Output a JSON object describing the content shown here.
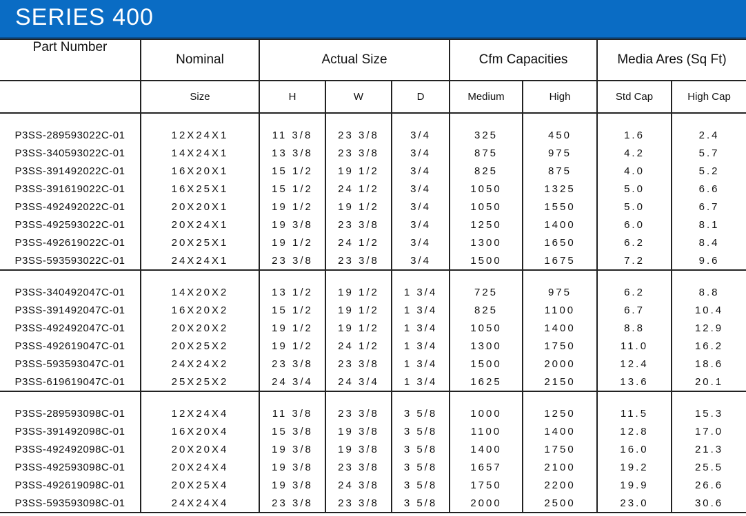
{
  "banner": {
    "title": "SERIES 400"
  },
  "headers": {
    "part_number": "Part Number",
    "nominal": "Nominal",
    "actual_size": "Actual Size",
    "cfm": "Cfm Capacities",
    "media": "Media Ares (Sq Ft)",
    "sub": {
      "size": "Size",
      "h": "H",
      "w": "W",
      "d": "D",
      "medium": "Medium",
      "high": "High",
      "std_cap": "Std Cap",
      "high_cap": "High Cap"
    }
  },
  "groups": [
    {
      "rows": [
        [
          "P3SS-289593022C-01",
          "12X24X1",
          "11 3/8",
          "23 3/8",
          "3/4",
          "325",
          "450",
          "1.6",
          "2.4"
        ],
        [
          "P3SS-340593022C-01",
          "14X24X1",
          "13 3/8",
          "23 3/8",
          "3/4",
          "875",
          "975",
          "4.2",
          "5.7"
        ],
        [
          "P3SS-391492022C-01",
          "16X20X1",
          "15 1/2",
          "19 1/2",
          "3/4",
          "825",
          "875",
          "4.0",
          "5.2"
        ],
        [
          "P3SS-391619022C-01",
          "16X25X1",
          "15 1/2",
          "24 1/2",
          "3/4",
          "1050",
          "1325",
          "5.0",
          "6.6"
        ],
        [
          "P3SS-492492022C-01",
          "20X20X1",
          "19 1/2",
          "19 1/2",
          "3/4",
          "1050",
          "1550",
          "5.0",
          "6.7"
        ],
        [
          "P3SS-492593022C-01",
          "20X24X1",
          "19 3/8",
          "23 3/8",
          "3/4",
          "1250",
          "1400",
          "6.0",
          "8.1"
        ],
        [
          "P3SS-492619022C-01",
          "20X25X1",
          "19 1/2",
          "24 1/2",
          "3/4",
          "1300",
          "1650",
          "6.2",
          "8.4"
        ],
        [
          "P3SS-593593022C-01",
          "24X24X1",
          "23 3/8",
          "23 3/8",
          "3/4",
          "1500",
          "1675",
          "7.2",
          "9.6"
        ]
      ]
    },
    {
      "rows": [
        [
          "P3SS-340492047C-01",
          "14X20X2",
          "13 1/2",
          "19 1/2",
          "1 3/4",
          "725",
          "975",
          "6.2",
          "8.8"
        ],
        [
          "P3SS-391492047C-01",
          "16X20X2",
          "15 1/2",
          "19 1/2",
          "1 3/4",
          "825",
          "1100",
          "6.7",
          "10.4"
        ],
        [
          "P3SS-492492047C-01",
          "20X20X2",
          "19 1/2",
          "19 1/2",
          "1 3/4",
          "1050",
          "1400",
          "8.8",
          "12.9"
        ],
        [
          "P3SS-492619047C-01",
          "20X25X2",
          "19 1/2",
          "24 1/2",
          "1 3/4",
          "1300",
          "1750",
          "11.0",
          "16.2"
        ],
        [
          "P3SS-593593047C-01",
          "24X24X2",
          "23 3/8",
          "23 3/8",
          "1 3/4",
          "1500",
          "2000",
          "12.4",
          "18.6"
        ],
        [
          "P3SS-619619047C-01",
          "25X25X2",
          "24 3/4",
          "24 3/4",
          "1 3/4",
          "1625",
          "2150",
          "13.6",
          "20.1"
        ]
      ]
    },
    {
      "rows": [
        [
          "P3SS-289593098C-01",
          "12X24X4",
          "11 3/8",
          "23 3/8",
          "3 5/8",
          "1000",
          "1250",
          "11.5",
          "15.3"
        ],
        [
          "P3SS-391492098C-01",
          "16X20X4",
          "15 3/8",
          "19 3/8",
          "3 5/8",
          "1100",
          "1400",
          "12.8",
          "17.0"
        ],
        [
          "P3SS-492492098C-01",
          "20X20X4",
          "19 3/8",
          "19 3/8",
          "3 5/8",
          "1400",
          "1750",
          "16.0",
          "21.3"
        ],
        [
          "P3SS-492593098C-01",
          "20X24X4",
          "19 3/8",
          "23 3/8",
          "3 5/8",
          "1657",
          "2100",
          "19.2",
          "25.5"
        ],
        [
          "P3SS-492619098C-01",
          "20X25X4",
          "19 3/8",
          "24 3/8",
          "3 5/8",
          "1750",
          "2200",
          "19.9",
          "26.6"
        ],
        [
          "P3SS-593593098C-01",
          "24X24X4",
          "23 3/8",
          "23 3/8",
          "3 5/8",
          "2000",
          "2500",
          "23.0",
          "30.6"
        ]
      ]
    }
  ],
  "colors": {
    "banner": "#0a6cc4",
    "banner_text": "#ffffff",
    "rule": "#222222"
  }
}
